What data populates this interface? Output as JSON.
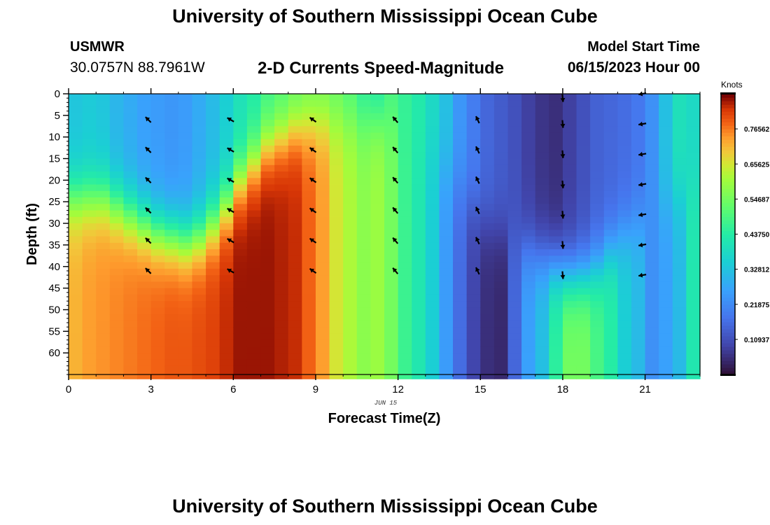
{
  "header": {
    "title": "University of Southern Mississippi Ocean Cube",
    "station": "USMWR",
    "coords": "30.0757N  88.7961W",
    "chart_title": "2-D Currents Speed-Magnitude",
    "start_label": "Model Start Time",
    "start_value": "06/15/2023 Hour 00"
  },
  "footer": {
    "title": "University of Southern Mississippi Ocean Cube"
  },
  "colors": {
    "arrow": "#000000",
    "axis": "#000000"
  },
  "chart_data": {
    "type": "heatmap",
    "title": "2-D Currents Speed-Magnitude",
    "xlabel": "Forecast Time(Z)",
    "ylabel": "Depth (ft)",
    "date_label": "JUN 15",
    "colorbar_label": "Knots",
    "x_ticks": [
      0,
      3,
      6,
      9,
      12,
      15,
      18,
      21
    ],
    "y_ticks": [
      0,
      5,
      10,
      15,
      20,
      25,
      30,
      35,
      40,
      45,
      50,
      55,
      60
    ],
    "colorbar_ticks": [
      "0.76562",
      "0.65625",
      "0.54687",
      "0.43750",
      "0.32812",
      "0.21875",
      "0.10937"
    ],
    "colorbar_tick_values": [
      0.765625,
      0.65625,
      0.546875,
      0.4375,
      0.328125,
      0.21875,
      0.109375
    ],
    "colorbar_range": [
      0.0,
      0.875
    ],
    "xlim": [
      0,
      23
    ],
    "ylim": [
      65,
      0
    ],
    "time_hours": [
      0,
      0.5,
      1,
      1.5,
      2,
      2.5,
      3,
      3.5,
      4,
      4.5,
      5,
      5.5,
      6,
      6.5,
      7,
      7.5,
      8,
      8.5,
      9,
      9.5,
      10,
      10.5,
      11,
      11.5,
      12,
      12.5,
      13,
      13.5,
      14,
      14.5,
      15,
      15.5,
      16,
      16.5,
      17,
      17.5,
      18,
      18.5,
      19,
      19.5,
      20,
      20.5,
      21,
      21.5,
      22,
      22.5
    ],
    "surface_speed_knots": [
      0.33,
      0.34,
      0.33,
      0.3,
      0.28,
      0.26,
      0.25,
      0.24,
      0.25,
      0.28,
      0.31,
      0.35,
      0.4,
      0.43,
      0.47,
      0.49,
      0.51,
      0.53,
      0.53,
      0.52,
      0.49,
      0.44,
      0.42,
      0.48,
      0.46,
      0.43,
      0.38,
      0.32,
      0.24,
      0.19,
      0.15,
      0.13,
      0.11,
      0.08,
      0.06,
      0.05,
      0.08,
      0.11,
      0.14,
      0.15,
      0.16,
      0.18,
      0.23,
      0.32,
      0.4,
      0.38
    ],
    "bottom_speed_knots": [
      0.72,
      0.74,
      0.75,
      0.76,
      0.77,
      0.78,
      0.79,
      0.8,
      0.8,
      0.81,
      0.82,
      0.84,
      0.86,
      0.86,
      0.86,
      0.85,
      0.84,
      0.79,
      0.74,
      0.66,
      0.62,
      0.58,
      0.6,
      0.55,
      0.47,
      0.42,
      0.35,
      0.25,
      0.16,
      0.09,
      0.05,
      0.04,
      0.15,
      0.26,
      0.32,
      0.45,
      0.55,
      0.55,
      0.49,
      0.44,
      0.35,
      0.31,
      0.23,
      0.26,
      0.31,
      0.42
    ],
    "transition_depth_ft": [
      24,
      24,
      24,
      26,
      28,
      30,
      32,
      33,
      34,
      33,
      30,
      26,
      20,
      16,
      12,
      10,
      8,
      7,
      6,
      6,
      6,
      6,
      6,
      6,
      10,
      12,
      14,
      18,
      22,
      26,
      30,
      32,
      34,
      36,
      38,
      40,
      42,
      42,
      40,
      36,
      32,
      30,
      28,
      26,
      24,
      22
    ],
    "vectors": [
      {
        "hour": 2.9,
        "direction_deg": 315,
        "depths_ft": [
          6,
          13,
          20,
          27,
          34,
          41
        ]
      },
      {
        "hour": 5.9,
        "direction_deg": 300,
        "depths_ft": [
          6,
          13,
          20,
          27,
          34,
          41
        ]
      },
      {
        "hour": 8.9,
        "direction_deg": 305,
        "depths_ft": [
          6,
          13,
          20,
          27,
          34,
          41
        ]
      },
      {
        "hour": 11.9,
        "direction_deg": 320,
        "depths_ft": [
          6,
          13,
          20,
          27,
          34,
          41
        ]
      },
      {
        "hour": 14.9,
        "direction_deg": 335,
        "depths_ft": [
          6,
          13,
          20,
          27,
          34,
          41
        ]
      },
      {
        "hour": 18.0,
        "direction_deg": 175,
        "depths_ft": [
          1,
          7,
          14,
          21,
          28,
          35,
          42
        ]
      },
      {
        "hour": 20.9,
        "direction_deg": 260,
        "depths_ft": [
          0,
          7,
          14,
          21,
          28,
          35,
          42
        ]
      }
    ]
  }
}
